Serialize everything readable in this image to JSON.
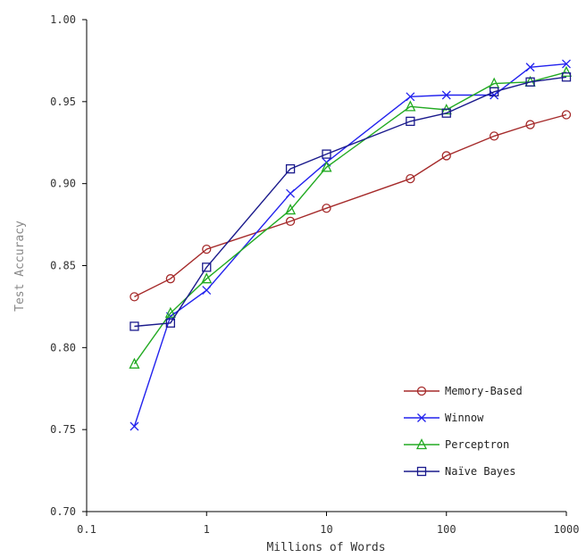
{
  "chart_data": {
    "type": "line",
    "title": "",
    "xlabel": "Millions of Words",
    "ylabel": "Test Accuracy",
    "xscale": "log",
    "xlim": [
      0.1,
      1000
    ],
    "ylim": [
      0.7,
      1.0
    ],
    "x_ticks": [
      0.1,
      1,
      10,
      100,
      1000
    ],
    "x_tick_labels": [
      "0.1",
      "1",
      "10",
      "100",
      "1000"
    ],
    "y_ticks": [
      0.7,
      0.75,
      0.8,
      0.85,
      0.9,
      0.95,
      1.0
    ],
    "y_tick_labels": [
      "0.70",
      "0.75",
      "0.80",
      "0.85",
      "0.90",
      "0.95",
      "1.00"
    ],
    "grid": false,
    "legend_position": "bottom-right",
    "x": [
      0.25,
      0.5,
      1,
      5,
      10,
      50,
      100,
      250,
      500,
      1000
    ],
    "series": [
      {
        "name": "Memory-Based",
        "color": "#a52a2a",
        "marker": "circle",
        "values": [
          0.831,
          0.842,
          0.86,
          0.877,
          0.885,
          0.903,
          0.917,
          0.929,
          0.936,
          0.942
        ]
      },
      {
        "name": "Winnow",
        "color": "#2222ee",
        "marker": "x",
        "values": [
          0.752,
          0.819,
          0.835,
          0.894,
          0.913,
          0.953,
          0.954,
          0.954,
          0.971,
          0.973
        ]
      },
      {
        "name": "Perceptron",
        "color": "#22aa22",
        "marker": "triangle",
        "values": [
          0.79,
          0.821,
          0.842,
          0.884,
          0.91,
          0.947,
          0.945,
          0.961,
          0.962,
          0.968
        ]
      },
      {
        "name": "Naïve Bayes",
        "color": "#1a1a8c",
        "marker": "square",
        "values": [
          0.813,
          0.815,
          0.849,
          0.909,
          0.918,
          0.938,
          0.943,
          0.956,
          0.962,
          0.965
        ]
      }
    ]
  }
}
